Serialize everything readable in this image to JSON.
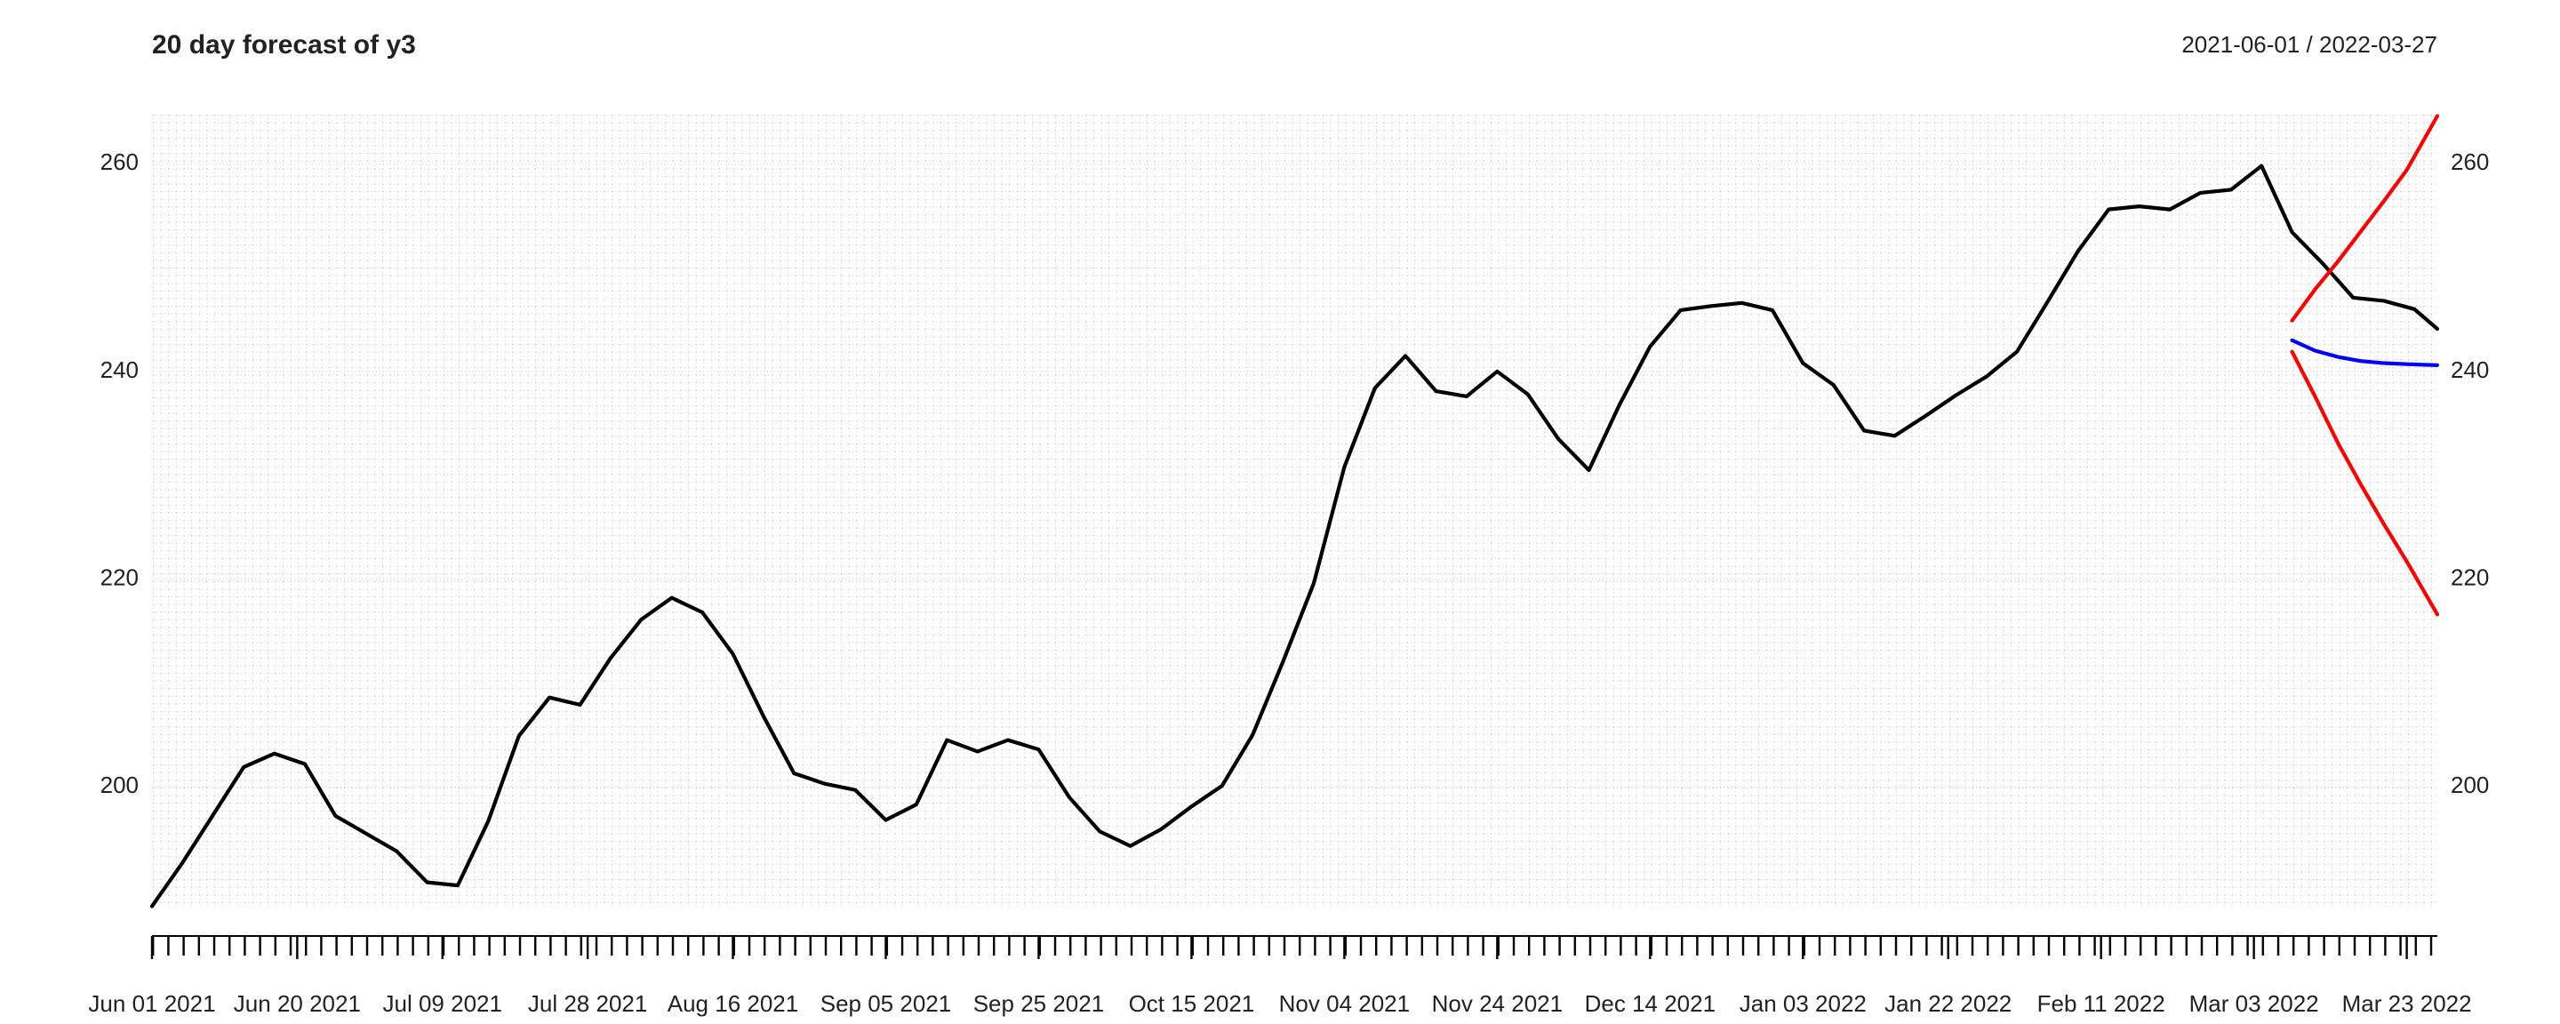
{
  "chart_data": {
    "type": "line",
    "title": "20 day forecast of y3",
    "subtitle": "2021-06-01 / 2022-03-27",
    "xlim": [
      "2021-06-01",
      "2022-03-27"
    ],
    "xticks": [
      {
        "value": "2021-06-01",
        "label": "Jun 01 2021"
      },
      {
        "value": "2021-06-20",
        "label": "Jun 20 2021"
      },
      {
        "value": "2021-07-09",
        "label": "Jul 09 2021"
      },
      {
        "value": "2021-07-28",
        "label": "Jul 28 2021"
      },
      {
        "value": "2021-08-16",
        "label": "Aug 16 2021"
      },
      {
        "value": "2021-09-05",
        "label": "Sep 05 2021"
      },
      {
        "value": "2021-09-25",
        "label": "Sep 25 2021"
      },
      {
        "value": "2021-10-15",
        "label": "Oct 15 2021"
      },
      {
        "value": "2021-11-04",
        "label": "Nov 04 2021"
      },
      {
        "value": "2021-11-24",
        "label": "Nov 24 2021"
      },
      {
        "value": "2021-12-14",
        "label": "Dec 14 2021"
      },
      {
        "value": "2022-01-03",
        "label": "Jan 03 2022"
      },
      {
        "value": "2022-01-22",
        "label": "Jan 22 2022"
      },
      {
        "value": "2022-02-11",
        "label": "Feb 11 2022"
      },
      {
        "value": "2022-03-03",
        "label": "Mar 03 2022"
      },
      {
        "value": "2022-03-23",
        "label": "Mar 23 2022"
      }
    ],
    "ylim": [
      188.2,
      264.9
    ],
    "yticks": [
      200,
      220,
      240,
      260
    ],
    "grid": true,
    "series": [
      {
        "color": "#000000",
        "x": [
          "2021-06-01",
          "2021-06-05",
          "2021-06-09",
          "2021-06-13",
          "2021-06-17",
          "2021-06-21",
          "2021-06-25",
          "2021-06-29",
          "2021-07-03",
          "2021-07-07",
          "2021-07-11",
          "2021-07-15",
          "2021-07-19",
          "2021-07-23",
          "2021-07-27",
          "2021-07-31",
          "2021-08-04",
          "2021-08-08",
          "2021-08-12",
          "2021-08-16",
          "2021-08-20",
          "2021-08-24",
          "2021-08-28",
          "2021-09-01",
          "2021-09-05",
          "2021-09-09",
          "2021-09-13",
          "2021-09-17",
          "2021-09-21",
          "2021-09-25",
          "2021-09-29",
          "2021-10-03",
          "2021-10-07",
          "2021-10-11",
          "2021-10-15",
          "2021-10-19",
          "2021-10-23",
          "2021-10-27",
          "2021-10-31",
          "2021-11-04",
          "2021-11-08",
          "2021-11-12",
          "2021-11-16",
          "2021-11-20",
          "2021-11-24",
          "2021-11-28",
          "2021-12-02",
          "2021-12-06",
          "2021-12-10",
          "2021-12-14",
          "2021-12-18",
          "2021-12-22",
          "2021-12-26",
          "2021-12-30",
          "2022-01-03",
          "2022-01-07",
          "2022-01-11",
          "2022-01-15",
          "2022-01-19",
          "2022-01-23",
          "2022-01-27",
          "2022-01-31",
          "2022-02-04",
          "2022-02-08",
          "2022-02-12",
          "2022-02-16",
          "2022-02-20",
          "2022-02-24",
          "2022-02-28",
          "2022-03-04",
          "2022-03-08",
          "2022-03-12",
          "2022-03-16",
          "2022-03-20",
          "2022-03-24",
          "2022-03-27"
        ],
        "values": [
          188.5,
          192.7,
          197.3,
          201.9,
          203.2,
          202.2,
          197.2,
          195.5,
          193.8,
          190.8,
          190.5,
          196.7,
          204.9,
          208.6,
          207.9,
          212.4,
          216.1,
          218.2,
          216.8,
          212.8,
          206.8,
          201.3,
          200.3,
          199.7,
          196.8,
          198.3,
          204.5,
          203.4,
          204.5,
          203.6,
          199.0,
          195.7,
          194.3,
          195.9,
          198.1,
          200.1,
          205.0,
          212.1,
          219.6,
          230.8,
          238.4,
          241.5,
          238.1,
          237.6,
          240.0,
          237.8,
          233.5,
          230.5,
          236.8,
          242.4,
          245.9,
          246.3,
          246.6,
          245.9,
          240.8,
          238.7,
          234.3,
          233.8,
          235.7,
          237.7,
          239.5,
          241.9,
          246.7,
          251.6,
          255.6,
          255.9,
          255.6,
          257.2,
          257.5,
          259.8,
          253.4,
          250.4,
          247.1,
          246.8,
          246.0,
          244.1
        ]
      },
      {
        "color": "#0000ff",
        "x": [
          "2022-03-08",
          "2022-03-11",
          "2022-03-14",
          "2022-03-17",
          "2022-03-20",
          "2022-03-23",
          "2022-03-27"
        ],
        "values": [
          243.0,
          242.0,
          241.4,
          241.0,
          240.8,
          240.7,
          240.6
        ]
      },
      {
        "color": "#ff0000",
        "x": [
          "2022-03-08",
          "2022-03-11",
          "2022-03-14",
          "2022-03-17",
          "2022-03-20",
          "2022-03-23",
          "2022-03-27"
        ],
        "values": [
          244.9,
          247.9,
          250.6,
          253.5,
          256.4,
          259.4,
          264.6
        ]
      },
      {
        "color": "#ff0000",
        "x": [
          "2022-03-08",
          "2022-03-11",
          "2022-03-14",
          "2022-03-17",
          "2022-03-20",
          "2022-03-23",
          "2022-03-27"
        ],
        "values": [
          241.9,
          237.6,
          233.1,
          229.1,
          225.3,
          221.7,
          216.6
        ]
      }
    ]
  }
}
